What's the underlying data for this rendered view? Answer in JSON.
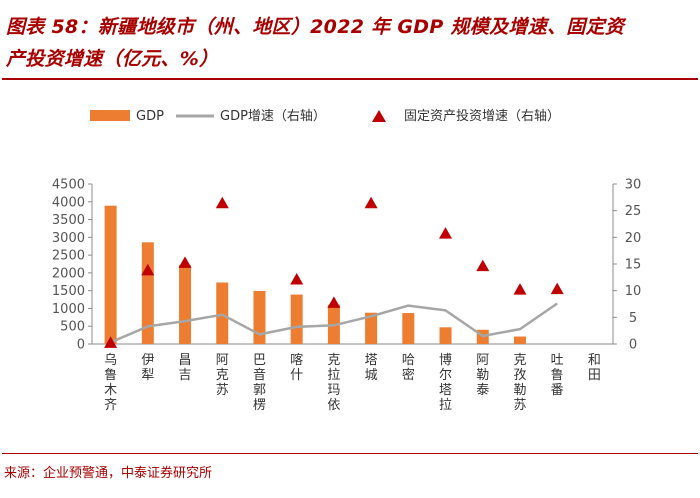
{
  "title_line1": "图表 58：新疆地级市（州、地区）2022 年 GDP 规模及增速、固定资",
  "title_line2": "产投资增速（亿元、%）",
  "source": "来源：企业预警通，中泰证券研究所",
  "colors": {
    "accent": "#a80000",
    "bar": "#ed7d31",
    "line": "#a6a6a6",
    "marker": "#c00000"
  },
  "chart_data": {
    "type": "bar",
    "title": "新疆地级市（州、地区）2022 年 GDP 规模及增速、固定资产投资增速（亿元、%）",
    "categories": [
      "乌鲁木齐",
      "伊犁",
      "昌吉",
      "阿克苏",
      "巴音郭楞",
      "喀什",
      "克拉玛依",
      "塔城",
      "哈密",
      "博尔塔拉",
      "阿勒泰",
      "克孜勒苏",
      "吐鲁番",
      "和田"
    ],
    "y_left": {
      "min": 0,
      "max": 4500,
      "step": 500,
      "ticks": [
        "0",
        "500",
        "1000",
        "1500",
        "2000",
        "2500",
        "3000",
        "3500",
        "4000",
        "4500"
      ]
    },
    "y_right": {
      "min": 0,
      "max": 30,
      "step": 5,
      "ticks": [
        "0",
        "5",
        "10",
        "15",
        "20",
        "25",
        "30"
      ]
    },
    "legend": [
      "GDP",
      "GDP增速（右轴）",
      "固定资产投资增速（右轴）"
    ],
    "series": [
      {
        "name": "GDP",
        "type": "bar",
        "axis": "left",
        "values": [
          3890,
          2860,
          2220,
          1730,
          1490,
          1390,
          1100,
          880,
          870,
          470,
          400,
          210,
          null,
          null
        ]
      },
      {
        "name": "GDP增速（右轴）",
        "type": "line",
        "axis": "right",
        "values": [
          0.3,
          3.3,
          4.3,
          5.5,
          1.8,
          3.2,
          3.5,
          5.2,
          7.2,
          6.3,
          1.5,
          2.8,
          7.6,
          null
        ]
      },
      {
        "name": "固定资产投资增速（右轴）",
        "type": "marker",
        "axis": "right",
        "values": [
          0.2,
          13.8,
          15.2,
          26.4,
          null,
          12.1,
          7.7,
          26.4,
          null,
          20.7,
          14.6,
          10.2,
          10.3,
          null
        ]
      }
    ]
  }
}
